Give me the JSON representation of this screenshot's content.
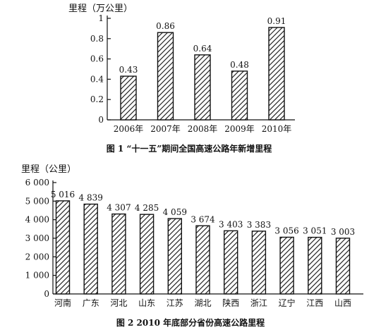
{
  "colors": {
    "ink": "#111111",
    "background": "#ffffff"
  },
  "chart_data": [
    {
      "type": "bar",
      "title": "图 1 “十一五”期间全国高速公路年新增里程",
      "ylabel": "里程（万公里）",
      "xlabel": "",
      "categories": [
        "2006年",
        "2007年",
        "2008年",
        "2009年",
        "2010年"
      ],
      "values": [
        0.43,
        0.86,
        0.64,
        0.48,
        0.91
      ],
      "value_labels": [
        "0.43",
        "0.86",
        "0.64",
        "0.48",
        "0.91"
      ],
      "ylim": [
        0,
        1
      ],
      "yticks": [
        0,
        0.2,
        0.4,
        0.6,
        0.8,
        1
      ],
      "ytick_labels": [
        "0",
        "0.2",
        "0.4",
        "0.6",
        "0.8",
        "1"
      ],
      "fill": "diagonal hatch",
      "grid": false,
      "legend": "none"
    },
    {
      "type": "bar",
      "title": "图 2 2010 年底部分省份高速公路里程",
      "ylabel": "里程（公里）",
      "xlabel": "",
      "categories": [
        "河南",
        "广东",
        "河北",
        "山东",
        "江苏",
        "湖北",
        "陕西",
        "浙江",
        "辽宁",
        "江西",
        "山西"
      ],
      "values": [
        5016,
        4839,
        4307,
        4285,
        4059,
        3674,
        3403,
        3383,
        3056,
        3051,
        3003
      ],
      "value_labels": [
        "5 016",
        "4 839",
        "4 307",
        "4 285",
        "4 059",
        "3 674",
        "3 403",
        "3 383",
        "3 056",
        "3 051",
        "3 003"
      ],
      "ylim": [
        0,
        6000
      ],
      "yticks": [
        0,
        1000,
        2000,
        3000,
        4000,
        5000,
        6000
      ],
      "ytick_labels": [
        "0",
        "1 000",
        "2 000",
        "3 000",
        "4 000",
        "5 000",
        "6 000"
      ],
      "fill": "diagonal hatch",
      "grid": false,
      "legend": "none"
    }
  ]
}
